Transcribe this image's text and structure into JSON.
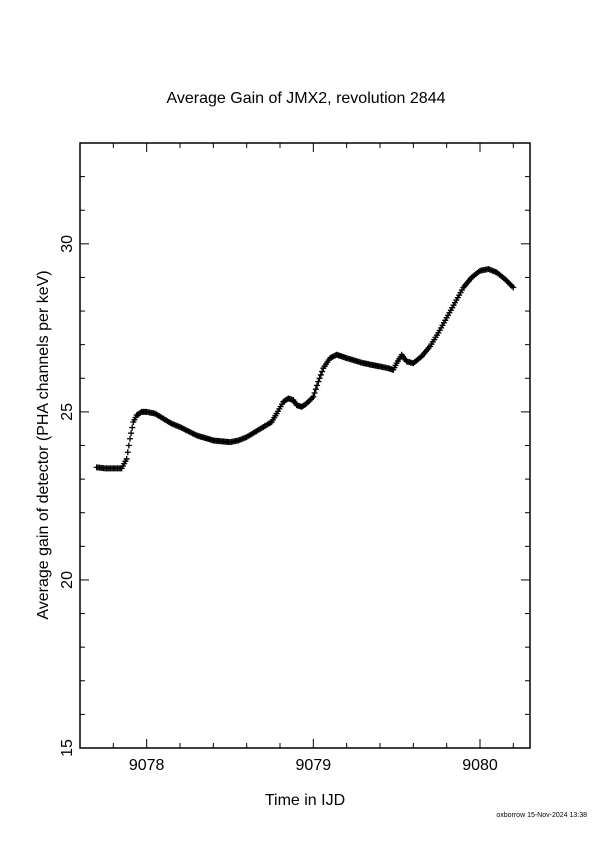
{
  "footer_text": "oxborrow 15-Nov-2024 13:38",
  "chart_data": {
    "type": "scatter",
    "title": "Average Gain of JMX2, revolution 2844",
    "xlabel": "Time in IJD",
    "ylabel": "Average gain of detector (PHA channels per keV)",
    "xlim": [
      9077.6,
      9080.3
    ],
    "ylim": [
      15,
      33
    ],
    "x_ticks": [
      9078,
      9079,
      9080
    ],
    "y_ticks": [
      15,
      20,
      25,
      30
    ],
    "marker": "plus",
    "series": [
      {
        "x": [
          9077.7,
          9077.75,
          9077.8,
          9077.85,
          9077.88,
          9077.9,
          9077.92,
          9077.94,
          9077.97,
          9078.0,
          9078.05,
          9078.1,
          9078.15,
          9078.2,
          9078.3,
          9078.4,
          9078.5,
          9078.55,
          9078.6,
          9078.65,
          9078.7,
          9078.75,
          9078.78,
          9078.82,
          9078.85,
          9078.88,
          9078.9,
          9078.93,
          9078.96,
          9079.0,
          9079.03,
          9079.06,
          9079.1,
          9079.14,
          9079.2,
          9079.3,
          9079.4,
          9079.45,
          9079.48,
          9079.5,
          9079.53,
          9079.56,
          9079.6,
          9079.65,
          9079.7,
          9079.75,
          9079.8,
          9079.85,
          9079.9,
          9079.95,
          9080.0,
          9080.05,
          9080.1,
          9080.15,
          9080.2
        ],
        "y": [
          23.35,
          23.32,
          23.32,
          23.32,
          23.6,
          24.2,
          24.7,
          24.9,
          25.0,
          25.0,
          24.95,
          24.8,
          24.65,
          24.55,
          24.3,
          24.15,
          24.1,
          24.15,
          24.25,
          24.4,
          24.55,
          24.7,
          24.95,
          25.3,
          25.4,
          25.35,
          25.2,
          25.15,
          25.25,
          25.45,
          25.9,
          26.3,
          26.6,
          26.7,
          26.6,
          26.45,
          26.35,
          26.3,
          26.25,
          26.45,
          26.7,
          26.5,
          26.45,
          26.65,
          26.95,
          27.35,
          27.8,
          28.25,
          28.7,
          29.0,
          29.2,
          29.25,
          29.15,
          28.95,
          28.7
        ]
      }
    ]
  }
}
